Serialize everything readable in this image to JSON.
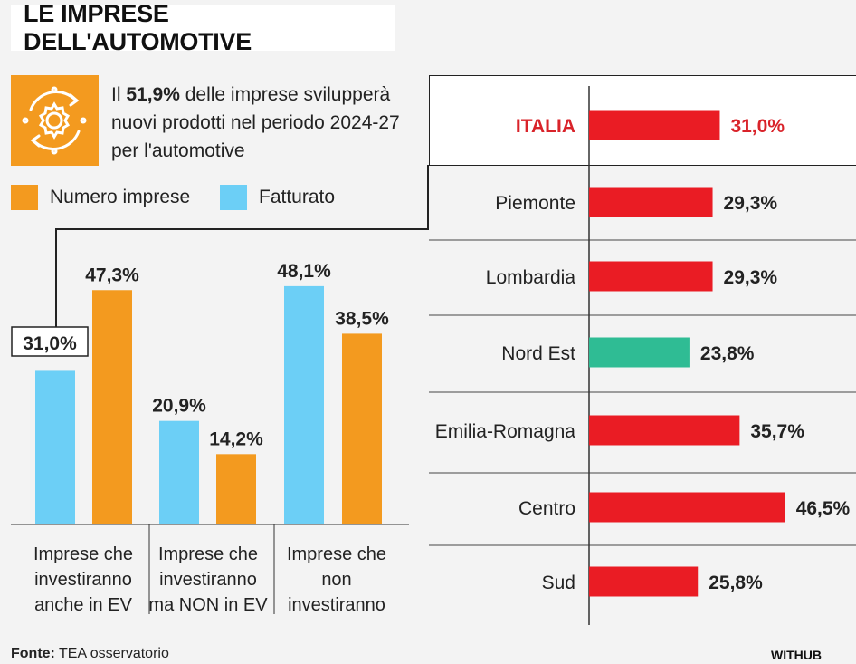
{
  "title": "LE IMPRESE DELL'AUTOMOTIVE",
  "headline": {
    "pre": "Il ",
    "highlight": "51,9%",
    "post": " delle imprese svilupperà nuovi prodotti nel periodo 2024-27 per l'automotive"
  },
  "icon": "gear-cycle-icon",
  "legend": [
    {
      "label": "Numero imprese",
      "color": "#f39a1f"
    },
    {
      "label": "Fatturato",
      "color": "#6ccff6"
    }
  ],
  "footer": {
    "source_label": "Fonte:",
    "source_text": " TEA osservatorio",
    "brand": "WITHUB"
  },
  "chart_data": [
    {
      "type": "bar",
      "categories": [
        "Imprese che investiranno anche in EV",
        "Imprese che investiranno ma NON in EV",
        "Imprese che non investiranno"
      ],
      "category_lines": [
        [
          "Imprese che",
          "investiranno",
          "anche in EV"
        ],
        [
          "Imprese che",
          "investiranno",
          "ma NON in EV"
        ],
        [
          "Imprese che",
          "non",
          "investiranno"
        ]
      ],
      "series": [
        {
          "name": "Fatturato",
          "color": "#6ccff6",
          "values": [
            31.0,
            20.9,
            48.1
          ],
          "labels": [
            "31,0%",
            "20,9%",
            "48,1%"
          ]
        },
        {
          "name": "Numero imprese",
          "color": "#f39a1f",
          "values": [
            47.3,
            14.2,
            38.5
          ],
          "labels": [
            "47,3%",
            "14,2%",
            "38,5%"
          ]
        }
      ],
      "ylim": [
        0,
        60
      ]
    },
    {
      "type": "bar",
      "orientation": "horizontal",
      "categories": [
        "ITALIA",
        "Piemonte",
        "Lombardia",
        "Nord Est",
        "Emilia-Romagna",
        "Centro",
        "Sud"
      ],
      "values": [
        31.0,
        29.3,
        29.3,
        23.8,
        35.7,
        46.5,
        25.8
      ],
      "labels": [
        "31,0%",
        "29,3%",
        "29,3%",
        "23,8%",
        "35,7%",
        "46,5%",
        "25,8%"
      ],
      "colors": [
        "#ea1c24",
        "#ea1c24",
        "#ea1c24",
        "#2fbc94",
        "#ea1c24",
        "#ea1c24",
        "#ea1c24"
      ],
      "highlight_color": "#d9232a"
    }
  ]
}
